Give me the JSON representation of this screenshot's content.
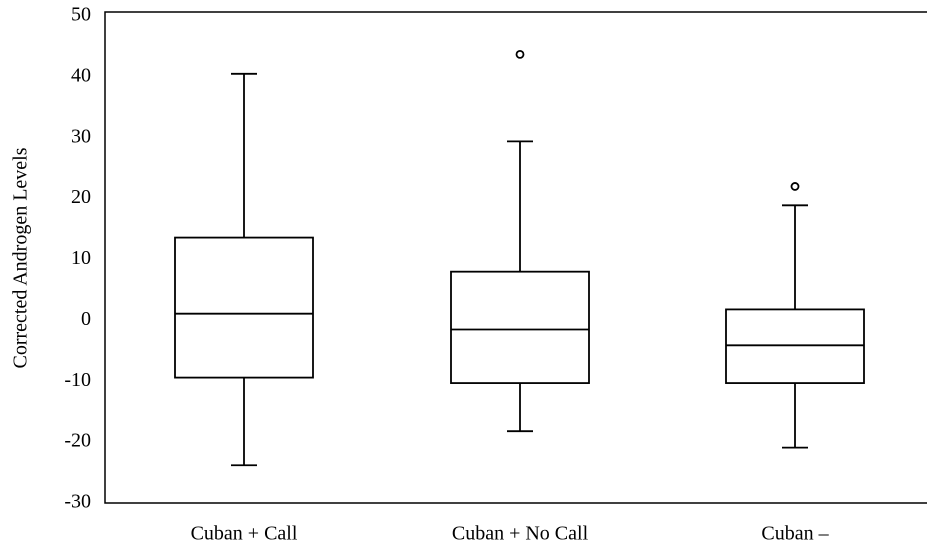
{
  "chart_data": {
    "type": "box",
    "y_label": "Corrected Androgen Levels",
    "categories": [
      "Cuban + Call",
      "Cuban + No Call",
      "Cuban –"
    ],
    "boxes": [
      {
        "whisker_low": -23.8,
        "q1": -9.4,
        "median": 1.1,
        "q3": 13.6,
        "whisker_high": 40.5,
        "outliers": []
      },
      {
        "whisker_low": -18.2,
        "q1": -10.3,
        "median": -1.5,
        "q3": 8.0,
        "whisker_high": 29.4,
        "outliers": [
          43.7
        ]
      },
      {
        "whisker_low": -20.9,
        "q1": -10.3,
        "median": -4.1,
        "q3": 1.8,
        "whisker_high": 18.9,
        "outliers": [
          22.0
        ]
      }
    ],
    "color": "#000000",
    "ylim": [
      -30,
      50
    ],
    "yticks": [
      -30,
      -20,
      -10,
      0,
      10,
      20,
      30,
      40,
      50
    ]
  }
}
